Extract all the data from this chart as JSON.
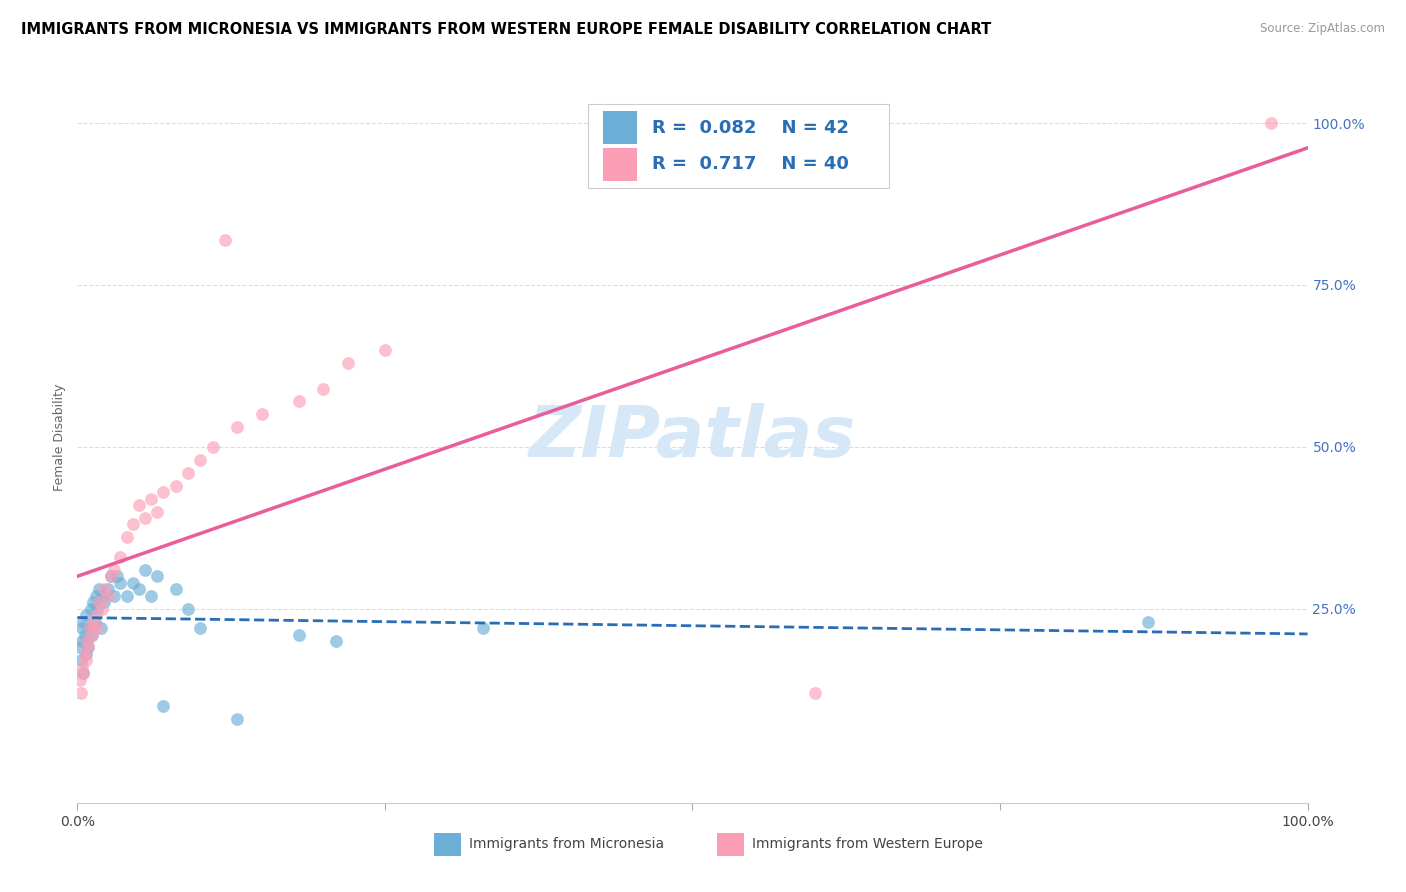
{
  "title": "IMMIGRANTS FROM MICRONESIA VS IMMIGRANTS FROM WESTERN EUROPE FEMALE DISABILITY CORRELATION CHART",
  "source": "Source: ZipAtlas.com",
  "ylabel": "Female Disability",
  "legend_label_blue": "Immigrants from Micronesia",
  "legend_label_pink": "Immigrants from Western Europe",
  "r_blue": 0.082,
  "n_blue": 42,
  "r_pink": 0.717,
  "n_pink": 40,
  "blue_color": "#6baed6",
  "pink_color": "#fb9eb5",
  "blue_line_color": "#2a6db5",
  "pink_line_color": "#e85d9a",
  "legend_text_color": "#2a6db5",
  "watermark_color": "#d6e8f7",
  "watermark": "ZIPatlas",
  "blue_x": [
    0.002,
    0.003,
    0.004,
    0.004,
    0.005,
    0.005,
    0.006,
    0.007,
    0.007,
    0.008,
    0.009,
    0.01,
    0.011,
    0.012,
    0.013,
    0.014,
    0.015,
    0.016,
    0.018,
    0.019,
    0.02,
    0.022,
    0.025,
    0.027,
    0.03,
    0.032,
    0.035,
    0.04,
    0.045,
    0.05,
    0.055,
    0.06,
    0.065,
    0.07,
    0.08,
    0.09,
    0.1,
    0.13,
    0.18,
    0.21,
    0.33,
    0.87
  ],
  "blue_y": [
    0.19,
    0.17,
    0.2,
    0.22,
    0.15,
    0.23,
    0.21,
    0.18,
    0.24,
    0.2,
    0.19,
    0.22,
    0.25,
    0.21,
    0.26,
    0.23,
    0.27,
    0.25,
    0.28,
    0.22,
    0.27,
    0.26,
    0.28,
    0.3,
    0.27,
    0.3,
    0.29,
    0.27,
    0.29,
    0.28,
    0.31,
    0.27,
    0.3,
    0.1,
    0.28,
    0.25,
    0.22,
    0.08,
    0.21,
    0.2,
    0.22,
    0.23
  ],
  "pink_x": [
    0.002,
    0.003,
    0.004,
    0.005,
    0.006,
    0.007,
    0.008,
    0.009,
    0.01,
    0.012,
    0.013,
    0.015,
    0.016,
    0.018,
    0.02,
    0.022,
    0.025,
    0.027,
    0.03,
    0.035,
    0.04,
    0.045,
    0.05,
    0.055,
    0.06,
    0.065,
    0.07,
    0.08,
    0.09,
    0.1,
    0.11,
    0.12,
    0.13,
    0.15,
    0.18,
    0.2,
    0.22,
    0.25,
    0.6,
    0.97
  ],
  "pink_y": [
    0.14,
    0.12,
    0.16,
    0.15,
    0.18,
    0.17,
    0.2,
    0.19,
    0.22,
    0.21,
    0.23,
    0.24,
    0.22,
    0.26,
    0.25,
    0.28,
    0.27,
    0.3,
    0.31,
    0.33,
    0.36,
    0.38,
    0.41,
    0.39,
    0.42,
    0.4,
    0.43,
    0.44,
    0.46,
    0.48,
    0.5,
    0.82,
    0.53,
    0.55,
    0.57,
    0.59,
    0.63,
    0.65,
    0.12,
    1.0
  ]
}
